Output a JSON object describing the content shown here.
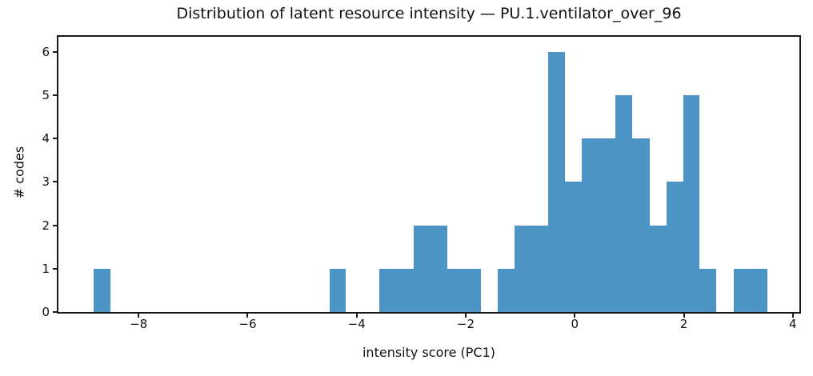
{
  "chart_data": {
    "type": "bar",
    "subtype": "histogram",
    "title": "Distribution of latent resource intensity — PU.1.ventilator_over_96",
    "xlabel": "intensity score (PC1)",
    "ylabel": "# codes",
    "bar_color": "#4c93c6",
    "axis_color": "#191919",
    "grid": false,
    "bin_edges": [
      -8.83,
      -8.52,
      -8.21,
      -7.9,
      -7.59,
      -7.29,
      -6.98,
      -6.67,
      -6.36,
      -6.05,
      -5.74,
      -5.43,
      -5.12,
      -4.81,
      -4.5,
      -4.2,
      -3.89,
      -3.58,
      -3.27,
      -2.96,
      -2.65,
      -2.34,
      -2.03,
      -1.72,
      -1.41,
      -1.11,
      -0.8,
      -0.49,
      -0.18,
      0.13,
      0.44,
      0.75,
      1.06,
      1.37,
      1.68,
      1.99,
      2.29,
      2.6,
      2.91,
      3.22,
      3.53
    ],
    "counts": [
      1,
      0,
      0,
      0,
      0,
      0,
      0,
      0,
      0,
      0,
      0,
      0,
      0,
      0,
      1,
      0,
      0,
      1,
      1,
      2,
      2,
      1,
      1,
      0,
      1,
      2,
      2,
      6,
      3,
      4,
      4,
      5,
      4,
      2,
      3,
      5,
      1,
      0,
      1,
      1
    ],
    "total_count": 54,
    "xlim": [
      -9.47,
      4.12
    ],
    "ylim": [
      0,
      6.35
    ],
    "xtick_values": [
      -8,
      -6,
      -4,
      -2,
      0,
      2,
      4
    ],
    "xtick_labels": [
      "−8",
      "−6",
      "−4",
      "−2",
      "0",
      "2",
      "4"
    ],
    "ytick_values": [
      0,
      1,
      2,
      3,
      4,
      5,
      6
    ],
    "ytick_labels": [
      "0",
      "1",
      "2",
      "3",
      "4",
      "5",
      "6"
    ]
  }
}
